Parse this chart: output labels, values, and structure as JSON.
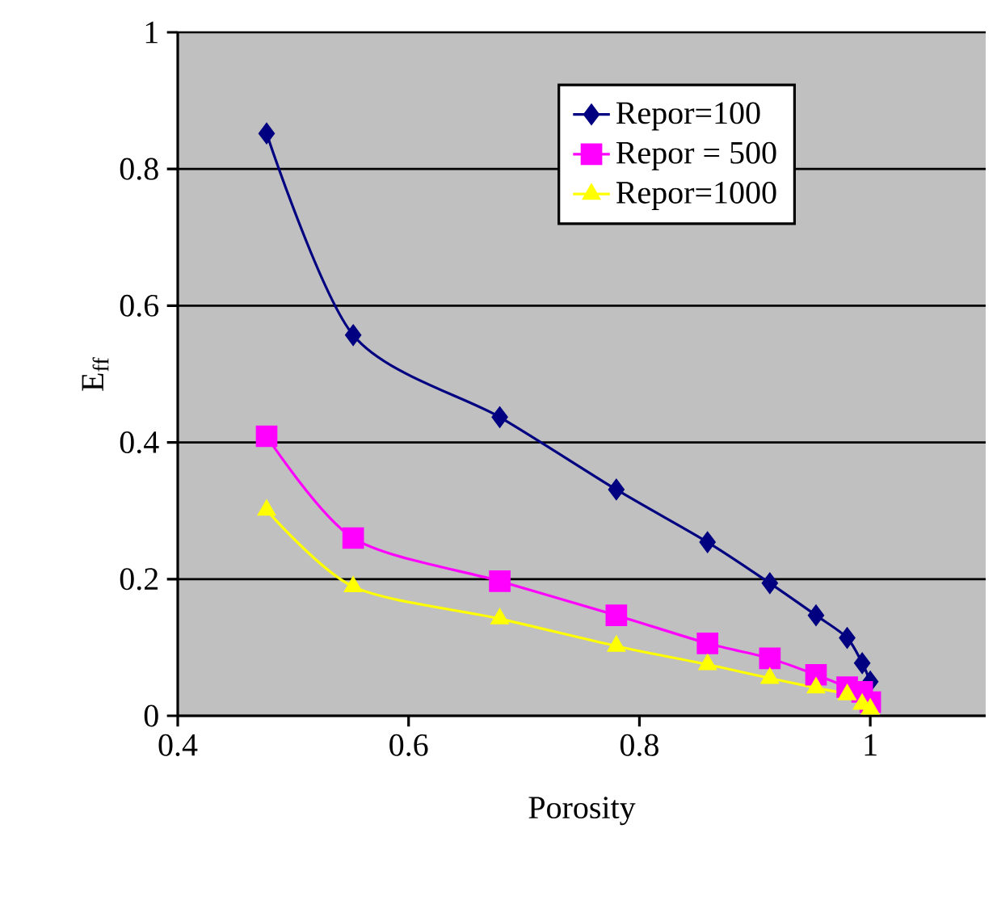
{
  "chart_data": {
    "type": "line",
    "xlabel": "Porosity",
    "ylabel": "E$_{ff}$",
    "xlim": [
      0.4,
      1.1
    ],
    "ylim": [
      0,
      1
    ],
    "xticks": [
      0.4,
      0.6,
      0.8,
      1
    ],
    "yticks": [
      0,
      0.2,
      0.4,
      0.6,
      0.8,
      1
    ],
    "grid": "y",
    "legend": "top right",
    "x": [
      0.477,
      0.552,
      0.679,
      0.78,
      0.859,
      0.913,
      0.953,
      0.98,
      0.993,
      1.0
    ],
    "series": [
      {
        "name": "Repor=100",
        "color": "#000080",
        "marker": "diamond",
        "values": [
          0.852,
          0.557,
          0.437,
          0.331,
          0.254,
          0.194,
          0.147,
          0.114,
          0.077,
          0.05
        ]
      },
      {
        "name": "Repor  = 500",
        "color": "#ff00ff",
        "marker": "square",
        "values": [
          0.409,
          0.26,
          0.197,
          0.147,
          0.106,
          0.084,
          0.06,
          0.042,
          0.035,
          0.02
        ]
      },
      {
        "name": "Repor=1000",
        "color": "#ffff00",
        "marker": "triangle",
        "values": [
          0.301,
          0.189,
          0.142,
          0.102,
          0.075,
          0.055,
          0.041,
          0.031,
          0.017,
          0.01
        ]
      }
    ]
  }
}
